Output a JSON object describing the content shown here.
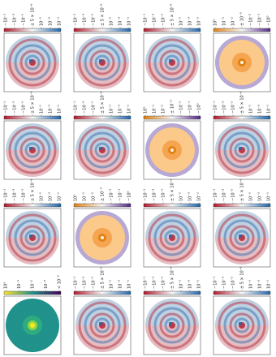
{
  "panels": [
    {
      "colors": [
        "#b2182b",
        "#f7f7f7",
        "#2166ac"
      ],
      "ticks": [
        "−10⁻¹",
        "−10⁻³",
        "−10⁻⁵",
        "± 5 × 10⁻⁶",
        "10⁻⁵",
        "10⁻³",
        "10⁻¹"
      ]
    },
    {
      "colors": [
        "#b2182b",
        "#f7f7f7",
        "#2166ac"
      ],
      "ticks": [
        "−10⁻¹",
        "−10⁻³",
        "−10⁻⁵",
        "± 5 × 10⁻⁶",
        "10⁻⁵",
        "10⁻³",
        "10⁻¹"
      ]
    },
    {
      "colors": [
        "#b2182b",
        "#f7f7f7",
        "#2166ac"
      ],
      "ticks": [
        "−10⁻¹",
        "−10⁻³",
        "−10⁻⁵",
        "± 5 × 10⁻⁶",
        "10⁻⁵",
        "10⁻³",
        "10⁻¹"
      ]
    },
    {
      "colors": [
        "#e08214",
        "#f7f7f7",
        "#542788"
      ],
      "ticks": [
        "10⁰",
        "10⁻¹",
        "10⁻²",
        "± 10⁻³",
        "−10⁻²",
        "−10⁻¹",
        "−10⁰"
      ]
    },
    {
      "colors": [
        "#b2182b",
        "#f7f7f7",
        "#2166ac"
      ],
      "ticks": [
        "−10⁻¹",
        "−10⁻³",
        "−10⁻⁵",
        "± 5 × 10⁻⁶",
        "10⁻⁵",
        "10⁻³",
        "10⁻¹"
      ]
    },
    {
      "colors": [
        "#b2182b",
        "#f7f7f7",
        "#2166ac"
      ],
      "ticks": [
        "−10⁻¹",
        "−10⁻³",
        "−10⁻⁵",
        "± 5 × 10⁻⁶",
        "10⁻⁵",
        "10⁻³",
        "10⁻¹"
      ]
    },
    {
      "colors": [
        "#e08214",
        "#f7f7f7",
        "#542788"
      ],
      "ticks": [
        "10⁰",
        "10⁻¹",
        "10⁻²",
        "± 10⁻³",
        "−10⁻²",
        "−10⁻¹",
        "−10⁰"
      ]
    },
    {
      "colors": [
        "#b2182b",
        "#f7f7f7",
        "#2166ac"
      ],
      "ticks": [
        "−10⁻¹",
        "−10⁻³",
        "−10⁻⁵",
        "± 5 × 10⁻⁶",
        "10⁻⁵",
        "10⁻³",
        "10⁻¹"
      ]
    },
    {
      "colors": [
        "#b2182b",
        "#f7f7f7",
        "#2166ac"
      ],
      "ticks": [
        "−10⁻¹",
        "−10⁻³",
        "−10⁻⁵",
        "± 5 × 10⁻⁶",
        "10⁻⁵",
        "10⁻³",
        "10⁻¹"
      ]
    },
    {
      "colors": [
        "#e08214",
        "#f7f7f7",
        "#542788"
      ],
      "ticks": [
        "10⁰",
        "10⁻¹",
        "10⁻²",
        "± 10⁻³",
        "−10⁻²",
        "−10⁻¹",
        "−10⁰"
      ]
    },
    {
      "colors": [
        "#b2182b",
        "#f7f7f7",
        "#2166ac"
      ],
      "ticks": [
        "−10⁻¹",
        "−10⁻³",
        "−10⁻⁵",
        "± 5 × 10⁻⁶",
        "10⁻⁵",
        "10⁻³",
        "10⁻¹"
      ]
    },
    {
      "colors": [
        "#b2182b",
        "#f7f7f7",
        "#2166ac"
      ],
      "ticks": [
        "−10⁻¹",
        "−10⁻³",
        "−10⁻⁵",
        "± 5 × 10⁻⁶",
        "10⁻⁵",
        "10⁻³",
        "10⁻¹"
      ]
    },
    {
      "colors": [
        "#fde725",
        "#21918c",
        "#440154"
      ],
      "ticks": [
        "10⁰",
        "10⁻¹",
        "10⁻²",
        "10⁻³",
        "< 10⁻⁴"
      ]
    },
    {
      "colors": [
        "#b2182b",
        "#f7f7f7",
        "#2166ac"
      ],
      "ticks": [
        "−10⁻¹",
        "−10⁻³",
        "−10⁻⁵",
        "± 5 × 10⁻⁶",
        "10⁻⁵",
        "10⁻³",
        "10⁻¹"
      ]
    },
    {
      "colors": [
        "#b2182b",
        "#f7f7f7",
        "#2166ac"
      ],
      "ticks": [
        "−10⁻¹",
        "−10⁻³",
        "−10⁻⁵",
        "± 5 × 10⁻⁶",
        "10⁻⁵",
        "10⁻³",
        "10⁻¹"
      ]
    },
    {
      "colors": [
        "#b2182b",
        "#f7f7f7",
        "#2166ac"
      ],
      "ticks": [
        "−10⁻¹",
        "−10⁻³",
        "−10⁻⁵",
        "± 5 × 10⁻⁶",
        "10⁻⁵",
        "10⁻³",
        "10⁻¹"
      ]
    }
  ]
}
